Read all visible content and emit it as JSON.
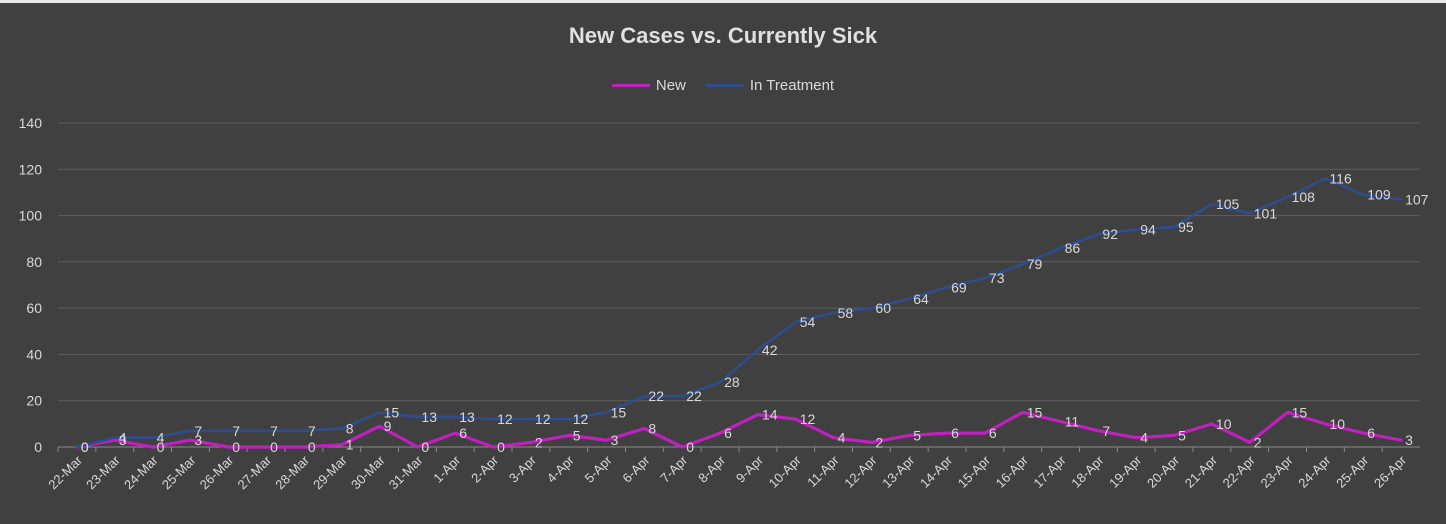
{
  "chart_data": {
    "type": "line",
    "title": "New Cases vs. Currently Sick",
    "xlabel": "",
    "ylabel": "",
    "ylim": [
      0,
      140
    ],
    "yticks": [
      0,
      20,
      40,
      60,
      80,
      100,
      120,
      140
    ],
    "grid": true,
    "legend_position": "top",
    "categories": [
      "22-Mar",
      "23-Mar",
      "24-Mar",
      "25-Mar",
      "26-Mar",
      "27-Mar",
      "28-Mar",
      "29-Mar",
      "30-Mar",
      "31-Mar",
      "1-Apr",
      "2-Apr",
      "3-Apr",
      "4-Apr",
      "5-Apr",
      "6-Apr",
      "7-Apr",
      "8-Apr",
      "9-Apr",
      "10-Apr",
      "11-Apr",
      "12-Apr",
      "13-Apr",
      "14-Apr",
      "15-Apr",
      "16-Apr",
      "17-Apr",
      "18-Apr",
      "19-Apr",
      "20-Apr",
      "21-Apr",
      "22-Apr",
      "23-Apr",
      "24-Apr",
      "25-Apr",
      "26-Apr"
    ],
    "series": [
      {
        "name": "New",
        "color": "#c020c0",
        "values": [
          0,
          3,
          0,
          3,
          0,
          0,
          0,
          1,
          9,
          0,
          6,
          0,
          2,
          5,
          3,
          8,
          0,
          6,
          14,
          12,
          4,
          2,
          5,
          6,
          6,
          15,
          11,
          7,
          4,
          5,
          10,
          2,
          15,
          10,
          6,
          3
        ]
      },
      {
        "name": "In Treatment",
        "color": "#2f4d8e",
        "values": [
          0,
          4,
          4,
          7,
          7,
          7,
          7,
          8,
          15,
          13,
          13,
          12,
          12,
          12,
          15,
          22,
          22,
          28,
          42,
          54,
          58,
          60,
          64,
          69,
          73,
          79,
          86,
          92,
          94,
          95,
          105,
          101,
          108,
          116,
          109,
          107
        ]
      }
    ]
  }
}
